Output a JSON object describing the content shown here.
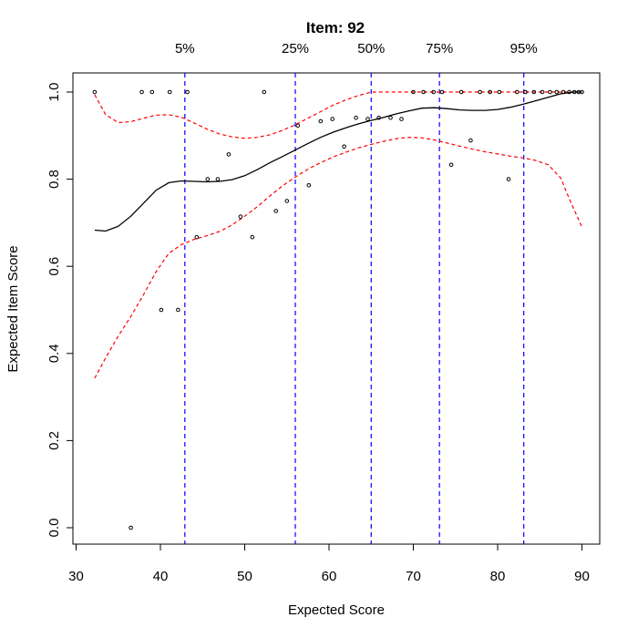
{
  "chart_data": {
    "type": "scatter",
    "title": "Item:  92",
    "xlabel": "Expected Score",
    "ylabel": "Expected Item Score",
    "xlim": [
      32,
      90
    ],
    "ylim": [
      0.0,
      1.0
    ],
    "x_ticks": [
      30,
      40,
      50,
      60,
      70,
      80,
      90
    ],
    "y_ticks": [
      0.0,
      0.2,
      0.4,
      0.6,
      0.8,
      1.0
    ],
    "x_tick_labels": [
      "30",
      "40",
      "50",
      "60",
      "70",
      "80",
      "90"
    ],
    "y_tick_labels": [
      "0.0",
      "0.2",
      "0.4",
      "0.6",
      "0.8",
      "1.0"
    ],
    "grid": false,
    "percentiles": [
      {
        "label": "5%",
        "x": 42.9
      },
      {
        "label": "25%",
        "x": 56.0
      },
      {
        "label": "50%",
        "x": 65.0
      },
      {
        "label": "75%",
        "x": 73.1
      },
      {
        "label": "95%",
        "x": 83.1
      }
    ],
    "points": [
      [
        32.2,
        1.0
      ],
      [
        36.5,
        0.0
      ],
      [
        37.8,
        1.0
      ],
      [
        39.0,
        1.0
      ],
      [
        40.1,
        0.5
      ],
      [
        41.1,
        1.0
      ],
      [
        42.1,
        0.5
      ],
      [
        43.2,
        1.0
      ],
      [
        44.3,
        0.667
      ],
      [
        45.6,
        0.8
      ],
      [
        46.8,
        0.8
      ],
      [
        48.1,
        0.857
      ],
      [
        49.5,
        0.714
      ],
      [
        50.9,
        0.667
      ],
      [
        52.3,
        1.0
      ],
      [
        53.7,
        0.727
      ],
      [
        55.0,
        0.75
      ],
      [
        56.3,
        0.923
      ],
      [
        57.6,
        0.786
      ],
      [
        59.0,
        0.933
      ],
      [
        60.4,
        0.938
      ],
      [
        61.8,
        0.875
      ],
      [
        63.2,
        0.941
      ],
      [
        64.6,
        0.938
      ],
      [
        65.9,
        0.941
      ],
      [
        67.3,
        0.941
      ],
      [
        68.6,
        0.938
      ],
      [
        70.0,
        1.0
      ],
      [
        71.2,
        1.0
      ],
      [
        72.4,
        1.0
      ],
      [
        73.4,
        1.0
      ],
      [
        74.5,
        0.833
      ],
      [
        75.7,
        1.0
      ],
      [
        76.8,
        0.889
      ],
      [
        77.9,
        1.0
      ],
      [
        79.1,
        1.0
      ],
      [
        80.2,
        1.0
      ],
      [
        81.3,
        0.8
      ],
      [
        82.3,
        1.0
      ],
      [
        83.3,
        1.0
      ],
      [
        84.3,
        1.0
      ],
      [
        85.3,
        1.0
      ],
      [
        86.2,
        1.0
      ],
      [
        87.0,
        1.0
      ],
      [
        87.8,
        1.0
      ],
      [
        88.5,
        1.0
      ],
      [
        89.1,
        1.0
      ],
      [
        89.6,
        1.0
      ],
      [
        90.0,
        1.0
      ]
    ],
    "fit": [
      [
        32.2,
        0.683
      ],
      [
        33.5,
        0.681
      ],
      [
        35.0,
        0.692
      ],
      [
        36.5,
        0.715
      ],
      [
        38.0,
        0.745
      ],
      [
        39.5,
        0.775
      ],
      [
        41.0,
        0.792
      ],
      [
        42.5,
        0.796
      ],
      [
        44.0,
        0.795
      ],
      [
        45.5,
        0.794
      ],
      [
        47.0,
        0.795
      ],
      [
        48.5,
        0.799
      ],
      [
        50.0,
        0.808
      ],
      [
        51.5,
        0.822
      ],
      [
        53.0,
        0.838
      ],
      [
        54.5,
        0.852
      ],
      [
        56.0,
        0.867
      ],
      [
        57.5,
        0.882
      ],
      [
        59.0,
        0.896
      ],
      [
        60.5,
        0.908
      ],
      [
        62.0,
        0.918
      ],
      [
        63.5,
        0.927
      ],
      [
        65.0,
        0.935
      ],
      [
        66.5,
        0.942
      ],
      [
        68.0,
        0.95
      ],
      [
        69.5,
        0.957
      ],
      [
        71.0,
        0.963
      ],
      [
        72.5,
        0.964
      ],
      [
        74.0,
        0.962
      ],
      [
        75.5,
        0.959
      ],
      [
        77.0,
        0.958
      ],
      [
        78.5,
        0.958
      ],
      [
        80.0,
        0.96
      ],
      [
        81.5,
        0.965
      ],
      [
        83.0,
        0.972
      ],
      [
        84.5,
        0.98
      ],
      [
        86.0,
        0.988
      ],
      [
        87.5,
        0.996
      ],
      [
        89.0,
        1.0
      ],
      [
        90.0,
        1.0
      ]
    ],
    "upper_band": [
      [
        32.2,
        0.994
      ],
      [
        33.5,
        0.948
      ],
      [
        35.0,
        0.93
      ],
      [
        36.5,
        0.932
      ],
      [
        38.0,
        0.94
      ],
      [
        39.5,
        0.947
      ],
      [
        41.0,
        0.948
      ],
      [
        42.5,
        0.942
      ],
      [
        44.0,
        0.929
      ],
      [
        45.5,
        0.915
      ],
      [
        47.0,
        0.904
      ],
      [
        48.5,
        0.897
      ],
      [
        50.0,
        0.894
      ],
      [
        51.5,
        0.896
      ],
      [
        53.0,
        0.902
      ],
      [
        54.5,
        0.912
      ],
      [
        56.0,
        0.925
      ],
      [
        57.5,
        0.94
      ],
      [
        59.0,
        0.955
      ],
      [
        60.5,
        0.97
      ],
      [
        62.0,
        0.982
      ],
      [
        63.5,
        0.992
      ],
      [
        65.0,
        1.0
      ],
      [
        67.0,
        1.0
      ],
      [
        70.0,
        1.0
      ],
      [
        75.0,
        1.0
      ],
      [
        80.0,
        1.0
      ],
      [
        85.0,
        1.0
      ],
      [
        90.0,
        1.0
      ]
    ],
    "lower_band": [
      [
        32.2,
        0.343
      ],
      [
        33.5,
        0.39
      ],
      [
        35.0,
        0.44
      ],
      [
        36.5,
        0.485
      ],
      [
        38.0,
        0.535
      ],
      [
        39.5,
        0.588
      ],
      [
        41.0,
        0.63
      ],
      [
        42.5,
        0.65
      ],
      [
        44.0,
        0.662
      ],
      [
        45.5,
        0.67
      ],
      [
        47.0,
        0.68
      ],
      [
        48.5,
        0.695
      ],
      [
        50.0,
        0.715
      ],
      [
        51.5,
        0.737
      ],
      [
        53.0,
        0.762
      ],
      [
        54.5,
        0.785
      ],
      [
        56.0,
        0.805
      ],
      [
        57.5,
        0.823
      ],
      [
        59.0,
        0.838
      ],
      [
        60.5,
        0.851
      ],
      [
        62.0,
        0.862
      ],
      [
        63.5,
        0.872
      ],
      [
        65.0,
        0.88
      ],
      [
        66.5,
        0.887
      ],
      [
        68.0,
        0.893
      ],
      [
        69.5,
        0.896
      ],
      [
        71.0,
        0.895
      ],
      [
        72.5,
        0.89
      ],
      [
        74.0,
        0.883
      ],
      [
        75.5,
        0.876
      ],
      [
        77.0,
        0.869
      ],
      [
        78.5,
        0.863
      ],
      [
        80.0,
        0.858
      ],
      [
        81.5,
        0.853
      ],
      [
        83.0,
        0.849
      ],
      [
        84.5,
        0.843
      ],
      [
        86.0,
        0.833
      ],
      [
        87.5,
        0.802
      ],
      [
        88.5,
        0.755
      ],
      [
        90.0,
        0.69
      ]
    ],
    "colors": {
      "points": "#000000",
      "fit": "#000000",
      "band": "#ff0000",
      "percentile_lines": "#0000ff"
    }
  }
}
